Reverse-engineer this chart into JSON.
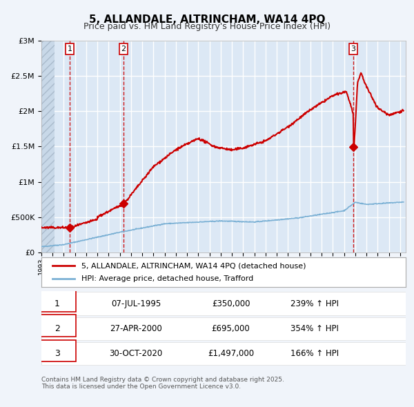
{
  "title": "5, ALLANDALE, ALTRINCHAM, WA14 4PQ",
  "subtitle": "Price paid vs. HM Land Registry's House Price Index (HPI)",
  "background_color": "#f0f4fa",
  "plot_bg_color": "#dce8f5",
  "hatch_bg_color": "#c8d8e8",
  "grid_color": "#ffffff",
  "red_line_color": "#cc0000",
  "blue_line_color": "#7ab0d4",
  "dashed_color": "#cc0000",
  "sale_points": [
    {
      "date_num": 1995.52,
      "price": 350000,
      "label": "1"
    },
    {
      "date_num": 2000.32,
      "price": 695000,
      "label": "2"
    },
    {
      "date_num": 2020.83,
      "price": 1497000,
      "label": "3"
    }
  ],
  "xmin": 1993.0,
  "xmax": 2025.5,
  "ymin": 0,
  "ymax": 3000000,
  "yticks": [
    0,
    500000,
    1000000,
    1500000,
    2000000,
    2500000,
    3000000
  ],
  "ytick_labels": [
    "£0",
    "£500K",
    "£1M",
    "£1.5M",
    "£2M",
    "£2.5M",
    "£3M"
  ],
  "legend_line1": "5, ALLANDALE, ALTRINCHAM, WA14 4PQ (detached house)",
  "legend_line2": "HPI: Average price, detached house, Trafford",
  "table_rows": [
    {
      "num": "1",
      "date": "07-JUL-1995",
      "price": "£350,000",
      "hpi": "239% ↑ HPI"
    },
    {
      "num": "2",
      "date": "27-APR-2000",
      "price": "£695,000",
      "hpi": "354% ↑ HPI"
    },
    {
      "num": "3",
      "date": "30-OCT-2020",
      "price": "£1,497,000",
      "hpi": "166% ↑ HPI"
    }
  ],
  "footer": "Contains HM Land Registry data © Crown copyright and database right 2025.\nThis data is licensed under the Open Government Licence v3.0."
}
